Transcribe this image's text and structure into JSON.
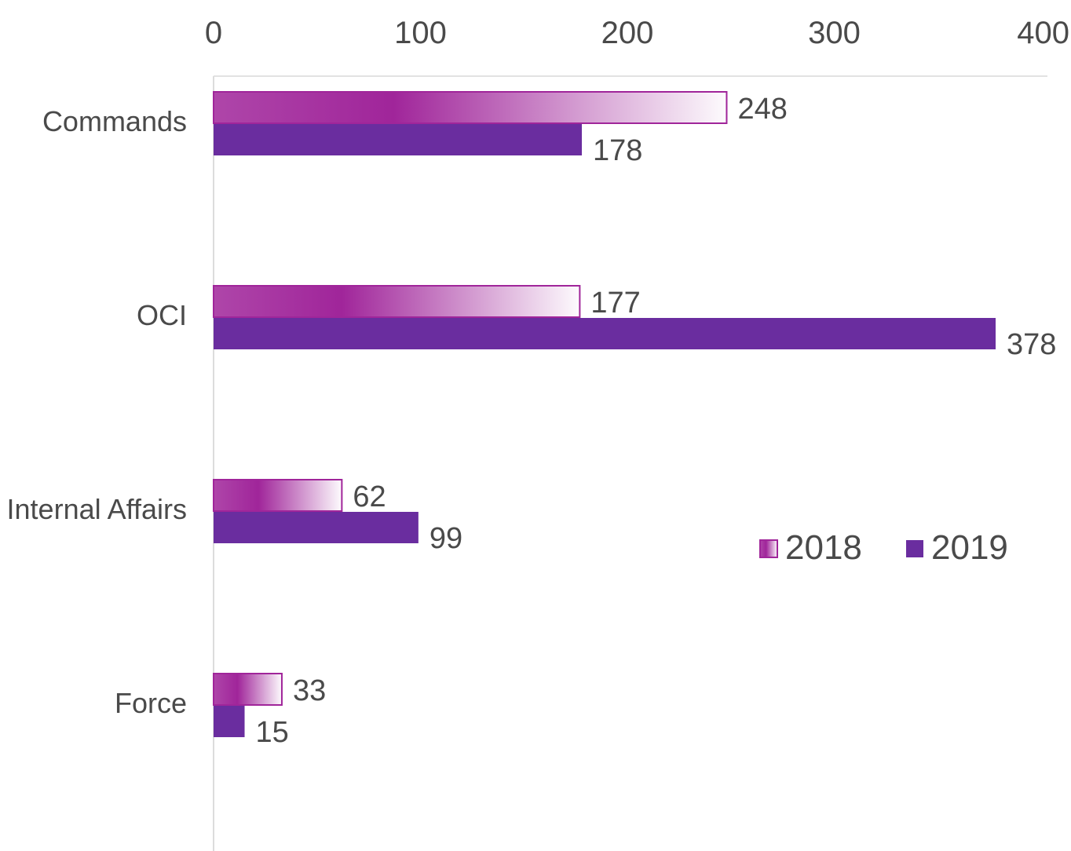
{
  "chart_data": {
    "type": "bar",
    "orientation": "horizontal",
    "title": "",
    "xlabel": "",
    "ylabel": "",
    "categories": [
      "Commands",
      "OCI",
      "Internal Affairs",
      "Force"
    ],
    "series": [
      {
        "name": "2018",
        "values": [
          248,
          177,
          62,
          33
        ],
        "color": "#a0259a"
      },
      {
        "name": "2019",
        "values": [
          178,
          378,
          99,
          15
        ],
        "color": "#6a2d9f"
      }
    ],
    "xlim": [
      0,
      400
    ],
    "x_ticks": [
      0,
      100,
      200,
      300,
      400
    ],
    "x_axis_position": "top",
    "grid": false,
    "legend": {
      "position": "right-center",
      "entries": [
        "2018",
        "2019"
      ]
    }
  }
}
